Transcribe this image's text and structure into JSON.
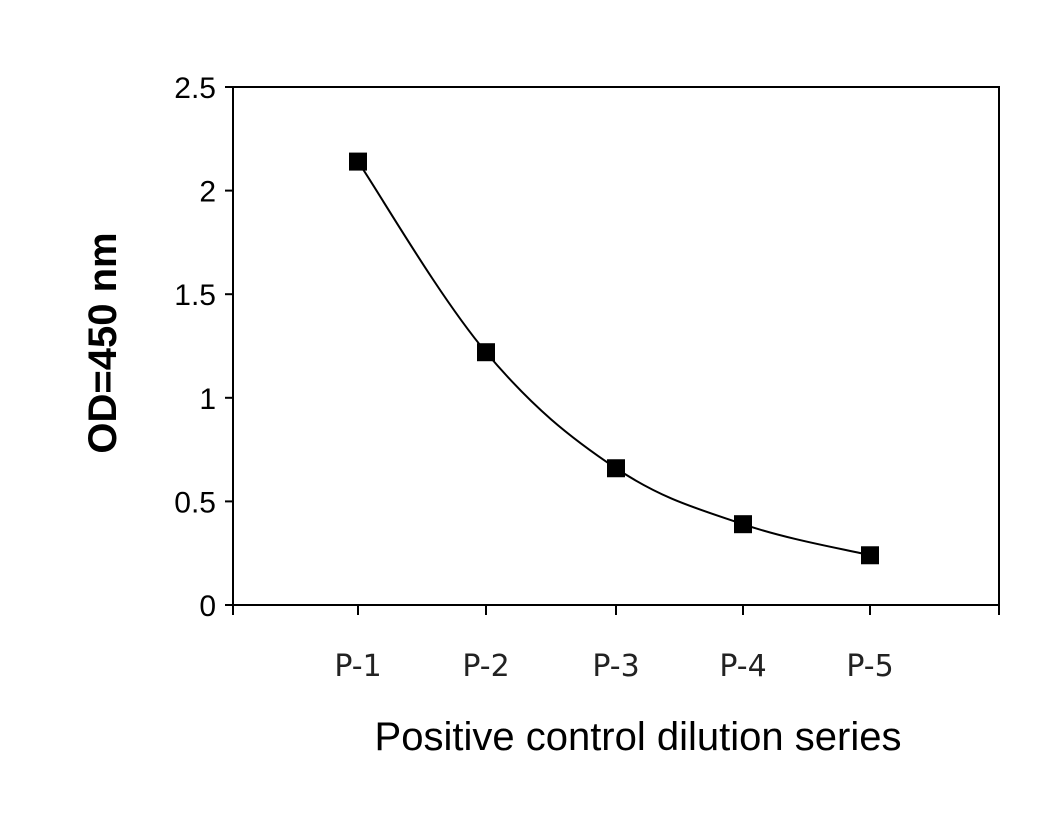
{
  "chart_data": {
    "type": "line",
    "title": "",
    "xlabel": "Positive control dilution series",
    "ylabel": "OD=450 nm",
    "categories": [
      "P-1",
      "P-2",
      "P-3",
      "P-4",
      "P-5"
    ],
    "series": [
      {
        "values": [
          2.14,
          1.22,
          0.66,
          0.39,
          0.24
        ]
      }
    ],
    "ylim": [
      0,
      2.5
    ],
    "yticks": [
      "0",
      "0.5",
      "1",
      "1.5",
      "2",
      "2.5"
    ],
    "grid": false,
    "legend": "none",
    "smooth": true,
    "marker": "square",
    "colors": {
      "line": "#000000",
      "marker": "#000000",
      "axis": "#000000"
    }
  }
}
